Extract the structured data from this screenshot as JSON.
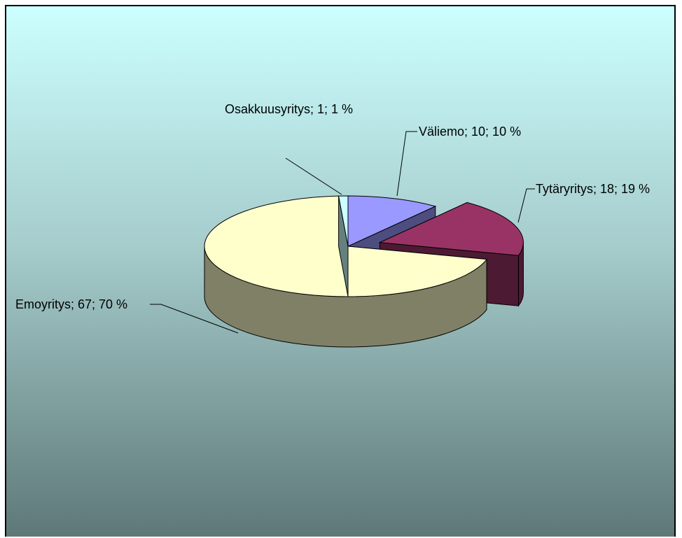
{
  "chart_data": {
    "type": "pie3d",
    "categories": [
      "Väliemo",
      "Tytäryritys",
      "Emoyritys",
      "Osakkuusyritys"
    ],
    "values": [
      10,
      18,
      67,
      1
    ],
    "value_labels": [
      "Väliemo; 10; 10 %",
      "Tytäryritys; 18; 19 %",
      "Emoyritys; 67; 70 %",
      "Osakkuusyritys; 1; 1 %"
    ],
    "colors": [
      "#9999ff",
      "#993366",
      "#ffffcc",
      "#ccffff"
    ],
    "exploded": [
      false,
      true,
      false,
      false
    ]
  }
}
